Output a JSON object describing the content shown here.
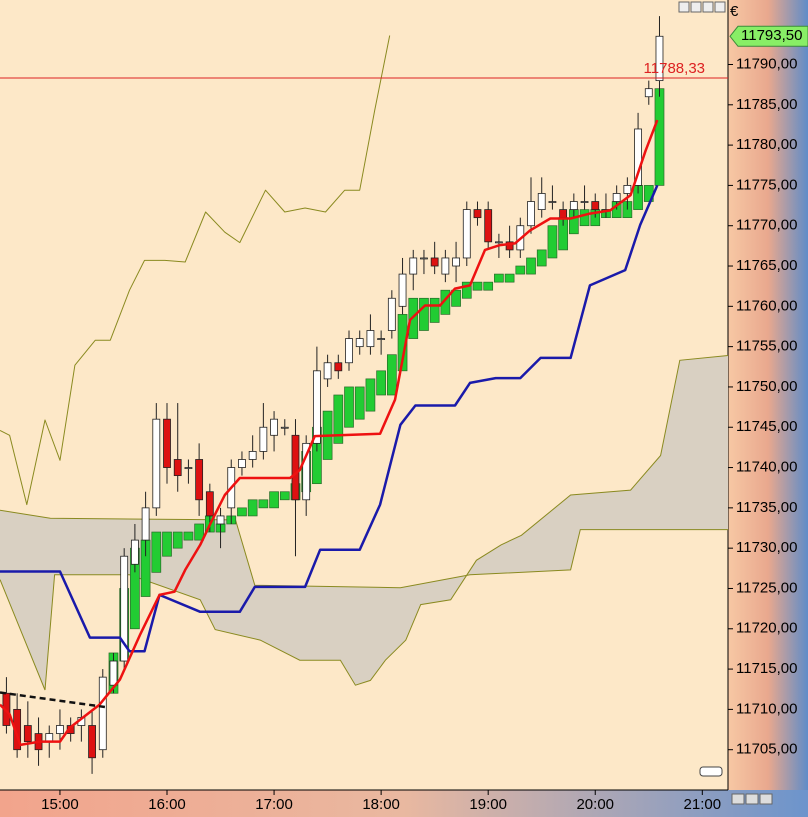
{
  "chart_data": {
    "type": "candlestick",
    "currency": "€",
    "background": "#fde8c8",
    "up_color": "#ffffff",
    "down_color": "#dd1111",
    "xlim": [
      14.44,
      21.24
    ],
    "ylim": [
      11700,
      11798
    ],
    "xticks": [
      {
        "value": 15,
        "label": "15:00"
      },
      {
        "value": 16,
        "label": "16:00"
      },
      {
        "value": 17,
        "label": "17:00"
      },
      {
        "value": 18,
        "label": "18:00"
      },
      {
        "value": 19,
        "label": "19:00"
      },
      {
        "value": 20,
        "label": "20:00"
      },
      {
        "value": 21,
        "label": "21:00"
      }
    ],
    "yticks": [
      {
        "value": 11705,
        "label": "11705,00"
      },
      {
        "value": 11710,
        "label": "11710,00"
      },
      {
        "value": 11715,
        "label": "11715,00"
      },
      {
        "value": 11720,
        "label": "11720,00"
      },
      {
        "value": 11725,
        "label": "11725,00"
      },
      {
        "value": 11730,
        "label": "11730,00"
      },
      {
        "value": 11735,
        "label": "11735,00"
      },
      {
        "value": 11740,
        "label": "11740,00"
      },
      {
        "value": 11745,
        "label": "11745,00"
      },
      {
        "value": 11750,
        "label": "11750,00"
      },
      {
        "value": 11755,
        "label": "11755,00"
      },
      {
        "value": 11760,
        "label": "11760,00"
      },
      {
        "value": 11765,
        "label": "11765,00"
      },
      {
        "value": 11770,
        "label": "11770,00"
      },
      {
        "value": 11775,
        "label": "11775,00"
      },
      {
        "value": 11780,
        "label": "11780,00"
      },
      {
        "value": 11785,
        "label": "11785,00"
      },
      {
        "value": 11790,
        "label": "11790,00"
      }
    ],
    "x": [
      14.5,
      14.6,
      14.7,
      14.8,
      14.9,
      15.0,
      15.1,
      15.2,
      15.3,
      15.4,
      15.5,
      15.6,
      15.7,
      15.8,
      15.9,
      16.0,
      16.1,
      16.2,
      16.3,
      16.4,
      16.5,
      16.6,
      16.7,
      16.8,
      16.9,
      17.0,
      17.1,
      17.2,
      17.3,
      17.4,
      17.5,
      17.6,
      17.7,
      17.8,
      17.9,
      18.0,
      18.1,
      18.2,
      18.3,
      18.4,
      18.5,
      18.6,
      18.7,
      18.8,
      18.9,
      19.0,
      19.1,
      19.2,
      19.3,
      19.4,
      19.5,
      19.6,
      19.7,
      19.8,
      19.9,
      20.0,
      20.1,
      20.2,
      20.3,
      20.4,
      20.5,
      20.6
    ],
    "open": [
      11712,
      11710,
      11708,
      11707,
      11706,
      11707,
      11708,
      11708,
      11708,
      11705,
      11713,
      11716,
      11728,
      11731,
      11735,
      11746,
      11741,
      11740,
      11741,
      11737,
      11733,
      11735,
      11740,
      11741,
      11742,
      11744,
      11745,
      11744,
      11736,
      11743,
      11751,
      11753,
      11753,
      11755,
      11755,
      11756,
      11757,
      11760,
      11764,
      11766,
      11766,
      11764,
      11765,
      11766,
      11772,
      11772,
      11768,
      11768,
      11767,
      11770,
      11772,
      11773,
      11772,
      11772,
      11773,
      11773,
      11772,
      11773,
      11774,
      11775,
      11786,
      11788
    ],
    "high": [
      11714,
      11712,
      11711,
      11709,
      11708,
      11710,
      11709,
      11710,
      11710,
      11715,
      11717,
      11730,
      11733,
      11737,
      11748,
      11748,
      11748,
      11741,
      11743,
      11738,
      11735,
      11741,
      11742,
      11744,
      11748,
      11747,
      11746,
      11746,
      11744,
      11755,
      11754,
      11754,
      11757,
      11757,
      11759,
      11757,
      11762,
      11766,
      11767,
      11767,
      11768,
      11767,
      11768,
      11773,
      11773,
      11773,
      11769,
      11770,
      11771,
      11776,
      11776,
      11775,
      11773,
      11774,
      11775,
      11774,
      11774,
      11775,
      11776,
      11784,
      11788,
      11796
    ],
    "low": [
      11707,
      11704,
      11704,
      11703,
      11704,
      11705,
      11706,
      11706,
      11702,
      11704,
      11712,
      11715,
      11727,
      11729,
      11734,
      11738,
      11737,
      11738,
      11734,
      11732,
      11730,
      11733,
      11739,
      11740,
      11741,
      11742,
      11744,
      11729,
      11734,
      11742,
      11750,
      11751,
      11752,
      11754,
      11754,
      11754,
      11756,
      11759,
      11762,
      11764,
      11764,
      11763,
      11763,
      11765,
      11770,
      11767,
      11766,
      11766,
      11766,
      11769,
      11771,
      11772,
      11770,
      11771,
      11772,
      11771,
      11771,
      11772,
      11772,
      11774,
      11785,
      11786
    ],
    "close": [
      11708,
      11705,
      11706,
      11705,
      11707,
      11708,
      11707,
      11709,
      11704,
      11714,
      11716,
      11729,
      11731,
      11735,
      11746,
      11740,
      11739,
      11740,
      11736,
      11734,
      11734,
      11740,
      11741,
      11742,
      11745,
      11746,
      11745,
      11736,
      11743,
      11752,
      11753,
      11752,
      11756,
      11756,
      11757,
      11756,
      11761,
      11764,
      11766,
      11766,
      11765,
      11766,
      11766,
      11772,
      11771,
      11768,
      11768,
      11767,
      11770,
      11773,
      11774,
      11773,
      11771,
      11773,
      11773,
      11772,
      11772,
      11774,
      11775,
      11782,
      11787,
      11793.5
    ],
    "blocks": {
      "color": "#22cc33",
      "x": [
        15.5,
        15.6,
        15.7,
        15.8,
        15.9,
        16.0,
        16.1,
        16.2,
        16.3,
        16.4,
        16.5,
        16.6,
        16.7,
        16.8,
        16.9,
        17.0,
        17.1,
        17.2,
        17.3,
        17.4,
        17.5,
        17.6,
        17.7,
        17.8,
        17.9,
        18.0,
        18.1,
        18.2,
        18.3,
        18.4,
        18.5,
        18.6,
        18.7,
        18.8,
        18.9,
        19.0,
        19.1,
        19.2,
        19.3,
        19.4,
        19.5,
        19.6,
        19.7,
        19.8,
        19.9,
        20.0,
        20.1,
        20.2,
        20.3,
        20.4,
        20.5,
        20.6
      ],
      "low": [
        11712,
        11716,
        11720,
        11724,
        11727,
        11729,
        11730,
        11731,
        11731,
        11732,
        11732,
        11733,
        11734,
        11734,
        11735,
        11735,
        11736,
        11736,
        11737,
        11738,
        11741,
        11743,
        11745,
        11746,
        11747,
        11749,
        11749,
        11752,
        11756,
        11757,
        11758,
        11759,
        11760,
        11761,
        11762,
        11762,
        11763,
        11763,
        11764,
        11764,
        11765,
        11766,
        11767,
        11769,
        11770,
        11770,
        11771,
        11771,
        11771,
        11772,
        11773,
        11775
      ],
      "high": [
        11717,
        11725,
        11730,
        11731,
        11732,
        11732,
        11732,
        11732,
        11733,
        11734,
        11733,
        11734,
        11735,
        11736,
        11736,
        11737,
        11737,
        11738,
        11742,
        11745,
        11747,
        11749,
        11750,
        11750,
        11751,
        11752,
        11754,
        11759,
        11761,
        11761,
        11761,
        11762,
        11762,
        11763,
        11763,
        11763,
        11764,
        11764,
        11765,
        11766,
        11767,
        11770,
        11771,
        11772,
        11772,
        11772,
        11772,
        11773,
        11773,
        11775,
        11775,
        11787
      ]
    },
    "cloud": {
      "fill": "#d9d0c2",
      "line_color": "#8a8a20",
      "a": {
        "x": [
          14.44,
          14.91,
          16.64,
          16.82,
          18.18,
          18.83,
          19.77,
          19.86,
          21.24
        ],
        "values": [
          11734.7,
          11733.7,
          11733.5,
          11725.4,
          11725.1,
          11726.7,
          11727.3,
          11732.3,
          11732.3
        ]
      },
      "b": {
        "x": [
          14.44,
          14.86,
          14.95,
          15.65,
          16.31,
          16.45,
          16.87,
          17.24,
          17.62,
          17.76,
          17.9,
          18.04,
          18.23,
          18.37,
          18.65,
          18.89,
          19.12,
          19.31,
          19.77,
          20.33,
          20.61,
          20.79,
          21.24
        ],
        "values": [
          11726.1,
          11712.4,
          11726.7,
          11726.7,
          11723.6,
          11719.9,
          11718.6,
          11716.1,
          11716.1,
          11713.0,
          11713.6,
          11716.1,
          11718.6,
          11723.0,
          11723.6,
          11728.5,
          11730.4,
          11731.6,
          11736.6,
          11737.2,
          11741.5,
          11753.3,
          11753.9
        ]
      }
    },
    "lines": [
      {
        "color": "#8a8a20",
        "width": 1,
        "x": [
          14.44,
          14.53,
          14.69,
          14.86,
          15,
          15.14,
          15.33,
          15.47,
          15.65,
          15.79,
          15.98,
          16.17,
          16.36,
          16.54,
          16.68,
          16.92,
          17.1,
          17.29,
          17.48,
          17.66,
          17.8,
          17.94,
          18.08
        ],
        "values": [
          11744.6,
          11744,
          11735.4,
          11745.9,
          11740.9,
          11752.7,
          11755.8,
          11755.8,
          11762,
          11765.7,
          11765.7,
          11765.5,
          11771.7,
          11769.2,
          11767.9,
          11774.4,
          11771.7,
          11772.2,
          11771.7,
          11774.4,
          11774.4,
          11784.3,
          11793.6
        ]
      },
      {
        "color": "#1a1aaa",
        "width": 2.5,
        "x": [
          14.44,
          15,
          15.28,
          15.56,
          15.65,
          15.79,
          15.93,
          16.31,
          16.68,
          16.82,
          17.29,
          17.43,
          17.8,
          17.99,
          18.18,
          18.32,
          18.69,
          18.83,
          19.07,
          19.3,
          19.49,
          19.77,
          19.95,
          20.28,
          20.42,
          20.58
        ],
        "values": [
          11727.1,
          11727.1,
          11718.9,
          11718.9,
          11717.2,
          11717.2,
          11724.2,
          11722.1,
          11722.1,
          11725.2,
          11725.2,
          11729.8,
          11729.8,
          11735.4,
          11745.3,
          11747.7,
          11747.7,
          11750.5,
          11751.1,
          11751.1,
          11753.6,
          11753.6,
          11762.6,
          11764.5,
          11770.1,
          11775.0
        ]
      },
      {
        "color": "#ee1111",
        "width": 2.5,
        "x": [
          14.44,
          14.53,
          14.63,
          14.81,
          15,
          15.09,
          15.37,
          15.56,
          15.75,
          15.93,
          16.07,
          16.17,
          16.31,
          16.4,
          16.54,
          16.68,
          17.15,
          17.24,
          17.38,
          17.99,
          18.13,
          18.27,
          18.41,
          18.55,
          18.69,
          18.83,
          18.97,
          19.11,
          19.25,
          19.39,
          19.58,
          19.77,
          19.95,
          20.14,
          20.33,
          20.47,
          20.58
        ],
        "values": [
          11710.6,
          11709.4,
          11705.6,
          11706,
          11706,
          11707.7,
          11710.6,
          11713.7,
          11719.3,
          11724.2,
          11724.6,
          11727.3,
          11730.4,
          11732.9,
          11736.6,
          11738.7,
          11738.7,
          11739.7,
          11743.9,
          11744.2,
          11748.4,
          11758.3,
          11760.1,
          11760.1,
          11762.2,
          11762.6,
          11767,
          11767.6,
          11767.8,
          11769.4,
          11770.9,
          11770.9,
          11771.5,
          11771.9,
          11773.8,
          11779.3,
          11783.1
        ]
      },
      {
        "color": "#111111",
        "width": 2.5,
        "dash": true,
        "x": [
          14.44,
          15.42
        ],
        "values": [
          11712.1,
          11710.3
        ]
      }
    ],
    "price_line": {
      "value": 11788.33,
      "label": "11788,33",
      "color": "#dd2222"
    },
    "last_price": {
      "value": 11793.5,
      "label": "11793,50",
      "color": "#88ee66"
    }
  }
}
